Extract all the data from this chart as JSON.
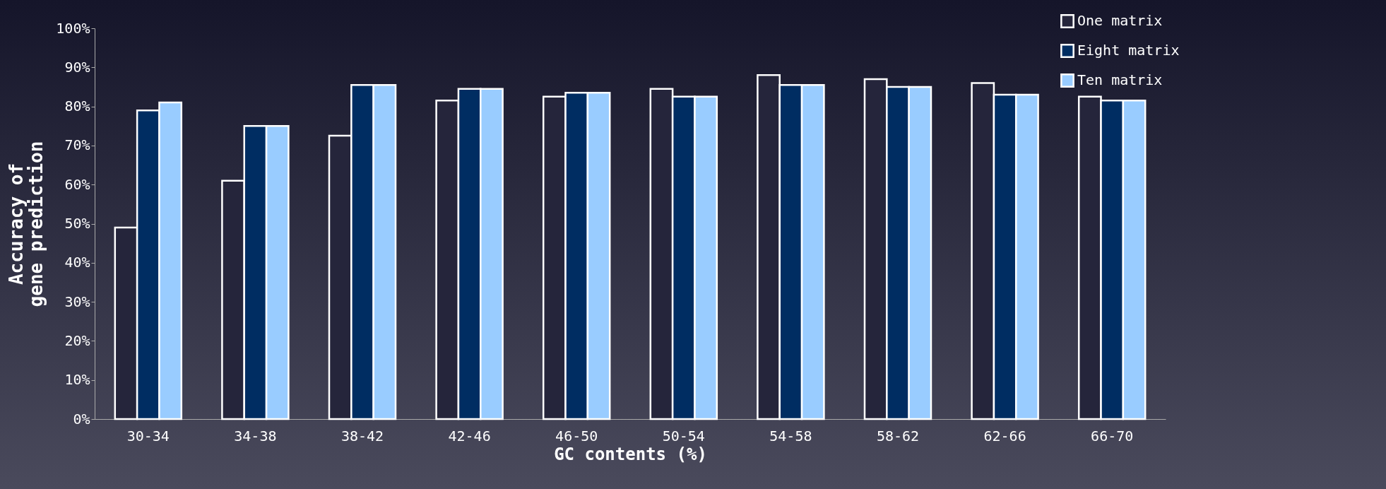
{
  "chart_data": {
    "type": "bar",
    "xlabel": "GC contents (%)",
    "ylabel": "Accuracy of gene prediction",
    "categories": [
      "30-34",
      "34-38",
      "38-42",
      "42-46",
      "46-50",
      "50-54",
      "54-58",
      "58-62",
      "62-66",
      "66-70"
    ],
    "series": [
      {
        "name": "One matrix",
        "color": "#25253b",
        "values": [
          49,
          61,
          72.5,
          81.5,
          82.5,
          84.5,
          88,
          87,
          86,
          82.5
        ]
      },
      {
        "name": "Eight matrix",
        "color": "#002d62",
        "values": [
          79,
          75,
          85.5,
          84.5,
          83.5,
          82.5,
          85.5,
          85,
          83,
          81.5
        ]
      },
      {
        "name": "Ten matrix",
        "color": "#99ccff",
        "values": [
          81,
          75,
          85.5,
          84.5,
          83.5,
          82.5,
          85.5,
          85,
          83,
          81.5
        ]
      }
    ],
    "ylim": [
      0,
      100
    ],
    "yticks": [
      {
        "value": 0,
        "label": "0%"
      },
      {
        "value": 10,
        "label": "10%"
      },
      {
        "value": 20,
        "label": "20%"
      },
      {
        "value": 30,
        "label": "30%"
      },
      {
        "value": 40,
        "label": "40%"
      },
      {
        "value": 50,
        "label": "50%"
      },
      {
        "value": 60,
        "label": "60%"
      },
      {
        "value": 70,
        "label": "70%"
      },
      {
        "value": 80,
        "label": "80%"
      },
      {
        "value": 90,
        "label": "90%"
      },
      {
        "value": 100,
        "label": "100%"
      }
    ],
    "grid": false,
    "legend": "top right"
  }
}
